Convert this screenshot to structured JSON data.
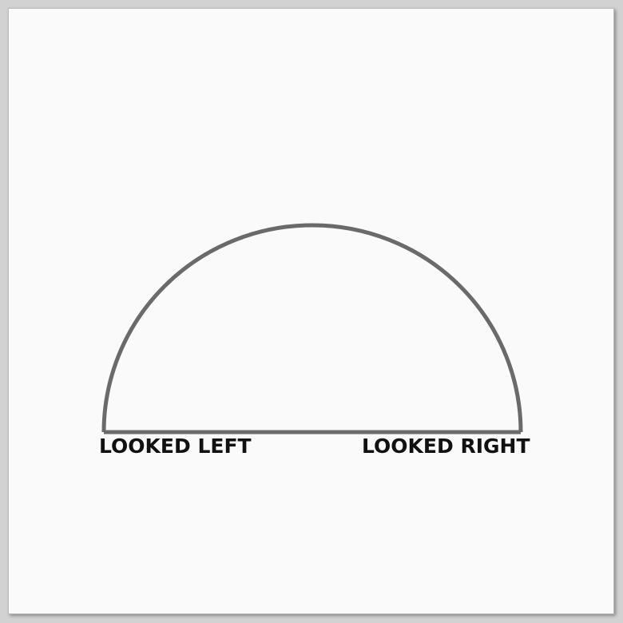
{
  "labels": {
    "left": "LOOKED LEFT",
    "right": "LOOKED RIGHT"
  },
  "colors": {
    "outline": "#6a6a6a",
    "text": "#111111",
    "sheet": "#fafafa",
    "background": "#d2d2d2"
  }
}
